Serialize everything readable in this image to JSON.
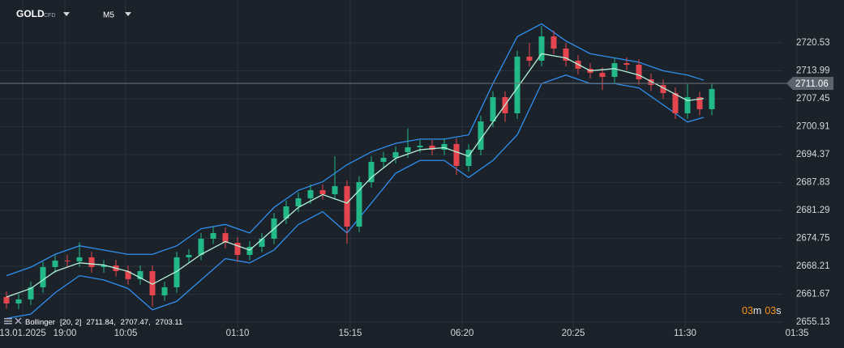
{
  "header": {
    "symbol": "GOLD",
    "symbol_type": "CFD",
    "timeframe": "M5"
  },
  "countdown": {
    "minutes": "03",
    "minutes_unit": "m",
    "seconds": "03",
    "seconds_unit": "s"
  },
  "chart_data": {
    "type": "candlestick",
    "x": [
      8,
      23,
      38,
      53,
      68,
      83,
      98,
      113,
      128,
      143,
      158,
      173,
      188,
      203,
      218,
      233,
      248,
      263,
      278,
      293,
      308,
      323,
      338,
      353,
      368,
      383,
      398,
      413,
      428,
      443,
      458,
      473,
      488,
      503,
      518,
      533,
      548,
      563,
      578,
      593,
      608,
      623,
      638,
      653,
      668,
      683,
      698,
      713,
      728,
      743,
      758,
      773,
      788,
      803,
      818,
      833,
      848,
      863,
      878
    ],
    "open": [
      2661.0,
      2659.49,
      2660.44,
      2663.28,
      2668.02,
      2669.54,
      2669.35,
      2670.3,
      2668.02,
      2668.4,
      2667.07,
      2665.18,
      2667.07,
      2661.39,
      2663.28,
      2670.3,
      2670.86,
      2674.66,
      2675.98,
      2673.71,
      2670.86,
      2672.76,
      2674.66,
      2679.4,
      2682.24,
      2684.13,
      2686.03,
      2685.08,
      2686.98,
      2677.5,
      2687.93,
      2692.67,
      2693.61,
      2694.94,
      2696.08,
      2696.46,
      2695.51,
      2696.84,
      2691.72,
      2695.51,
      2702.14,
      2707.83,
      2704.04,
      2717.31,
      2716.36,
      2722.05,
      2719.21,
      2716.36,
      2714.47,
      2713.52,
      2712.57,
      2715.79,
      2715.41,
      2712.0,
      2710.67,
      2708.78,
      2704.04,
      2707.83,
      2704.99
    ],
    "high": [
      2662.3,
      2661.7,
      2664.6,
      2669.3,
      2670.8,
      2670.9,
      2673.8,
      2671.6,
      2669.7,
      2669.7,
      2668.4,
      2668.4,
      2668.4,
      2664.6,
      2671.6,
      2672.2,
      2676.0,
      2677.6,
      2677.3,
      2675.0,
      2674.1,
      2676.0,
      2680.7,
      2683.6,
      2685.5,
      2687.4,
      2687.4,
      2694.0,
      2688.3,
      2689.3,
      2694.0,
      2695.0,
      2696.3,
      2700.5,
      2697.8,
      2697.8,
      2698.2,
      2698.2,
      2696.8,
      2703.5,
      2709.2,
      2709.2,
      2718.7,
      2720.5,
      2724.5,
      2723.4,
      2720.5,
      2717.7,
      2715.8,
      2714.8,
      2717.1,
      2717.1,
      2716.7,
      2713.3,
      2712.0,
      2710.1,
      2711.1,
      2709.1,
      2711.1
    ],
    "low": [
      2658.2,
      2658.2,
      2659.1,
      2662.0,
      2666.7,
      2668.0,
      2668.1,
      2666.7,
      2666.7,
      2665.8,
      2663.9,
      2663.9,
      2658.8,
      2660.1,
      2662.0,
      2669.0,
      2669.6,
      2673.4,
      2672.4,
      2669.2,
      2669.6,
      2671.5,
      2673.4,
      2678.1,
      2680.9,
      2682.8,
      2683.8,
      2683.8,
      2673.5,
      2676.2,
      2686.6,
      2691.4,
      2692.3,
      2693.6,
      2694.8,
      2694.2,
      2694.2,
      2689.6,
      2690.4,
      2694.2,
      2700.8,
      2702.0,
      2702.7,
      2715.0,
      2715.0,
      2717.9,
      2715.0,
      2713.1,
      2712.2,
      2709.5,
      2711.2,
      2714.1,
      2710.7,
      2709.3,
      2707.4,
      2702.7,
      2702.7,
      2703.6,
      2703.6
    ],
    "close": [
      2659.49,
      2660.44,
      2663.28,
      2668.02,
      2669.54,
      2669.35,
      2670.3,
      2668.02,
      2668.4,
      2667.07,
      2665.18,
      2667.07,
      2661.39,
      2663.28,
      2670.3,
      2670.86,
      2674.66,
      2675.98,
      2673.71,
      2670.86,
      2672.76,
      2674.66,
      2679.4,
      2682.24,
      2684.13,
      2686.03,
      2685.08,
      2686.98,
      2677.5,
      2687.93,
      2692.67,
      2693.61,
      2694.94,
      2696.08,
      2696.46,
      2695.51,
      2696.84,
      2691.72,
      2695.51,
      2702.14,
      2707.83,
      2704.04,
      2717.31,
      2716.36,
      2722.05,
      2719.21,
      2716.36,
      2714.47,
      2713.52,
      2712.57,
      2715.79,
      2715.41,
      2712.0,
      2710.67,
      2708.78,
      2704.04,
      2707.83,
      2704.99,
      2709.73
    ],
    "up_color": "#22b887",
    "down_color": "#e5454f",
    "bands": {
      "x": [
        8,
        38,
        68,
        98,
        128,
        158,
        188,
        218,
        248,
        278,
        308,
        338,
        368,
        398,
        428,
        458,
        488,
        518,
        548,
        578,
        608,
        638,
        668,
        698,
        728,
        758,
        788,
        818,
        848,
        868
      ],
      "upper": [
        2666,
        2668,
        2671,
        2673,
        2672,
        2671,
        2671,
        2673,
        2677,
        2678,
        2676,
        2682,
        2686,
        2688,
        2692,
        2695,
        2697,
        2698,
        2698,
        2699,
        2711,
        2722,
        2725,
        2721,
        2718,
        2717,
        2716,
        2714,
        2713,
        2711.8
      ],
      "middle": [
        2661,
        2663,
        2667,
        2669,
        2668.5,
        2667,
        2664,
        2667,
        2671,
        2674,
        2672,
        2677,
        2682,
        2685,
        2683,
        2689,
        2693.5,
        2695.5,
        2696,
        2694,
        2702,
        2710,
        2718,
        2717,
        2714,
        2714.5,
        2713,
        2710,
        2707,
        2707.5
      ],
      "lower": [
        2656,
        2657,
        2662,
        2666,
        2665,
        2663,
        2658,
        2660,
        2665,
        2670,
        2669,
        2672,
        2678,
        2681,
        2676,
        2683,
        2690,
        2693,
        2693,
        2689,
        2693,
        2699,
        2711,
        2713,
        2711,
        2711,
        2710,
        2706,
        2702,
        2703.1
      ],
      "color": "#2f8ff0",
      "middle_color": "#b5f2d8"
    },
    "indicator": {
      "name": "Bollinger",
      "params": "[20, 2]",
      "values": [
        2711.84,
        2707.47,
        2703.11
      ],
      "value_labels": [
        "2711.84,",
        "2707.47,",
        "2703.11"
      ]
    },
    "last_price": 2711.06,
    "xlim": [
      0,
      1041
    ],
    "ylim": [
      2653.8,
      2730.58
    ],
    "yticks": [
      2720.53,
      2713.99,
      2707.45,
      2700.91,
      2694.37,
      2687.83,
      2681.29,
      2674.75,
      2668.21,
      2661.67,
      2655.13
    ],
    "xticks": [
      {
        "value": 28,
        "label": "13.01.2025"
      },
      {
        "value": 80,
        "label": "19:00"
      },
      {
        "value": 155,
        "label": "10:05"
      },
      {
        "value": 293,
        "label": "01:10"
      },
      {
        "value": 432,
        "label": "15:15"
      },
      {
        "value": 570,
        "label": "06:20"
      },
      {
        "value": 707,
        "label": "20:25"
      },
      {
        "value": 845,
        "label": "11:30"
      },
      {
        "value": 983,
        "label": "01:35"
      }
    ],
    "grid": true
  }
}
